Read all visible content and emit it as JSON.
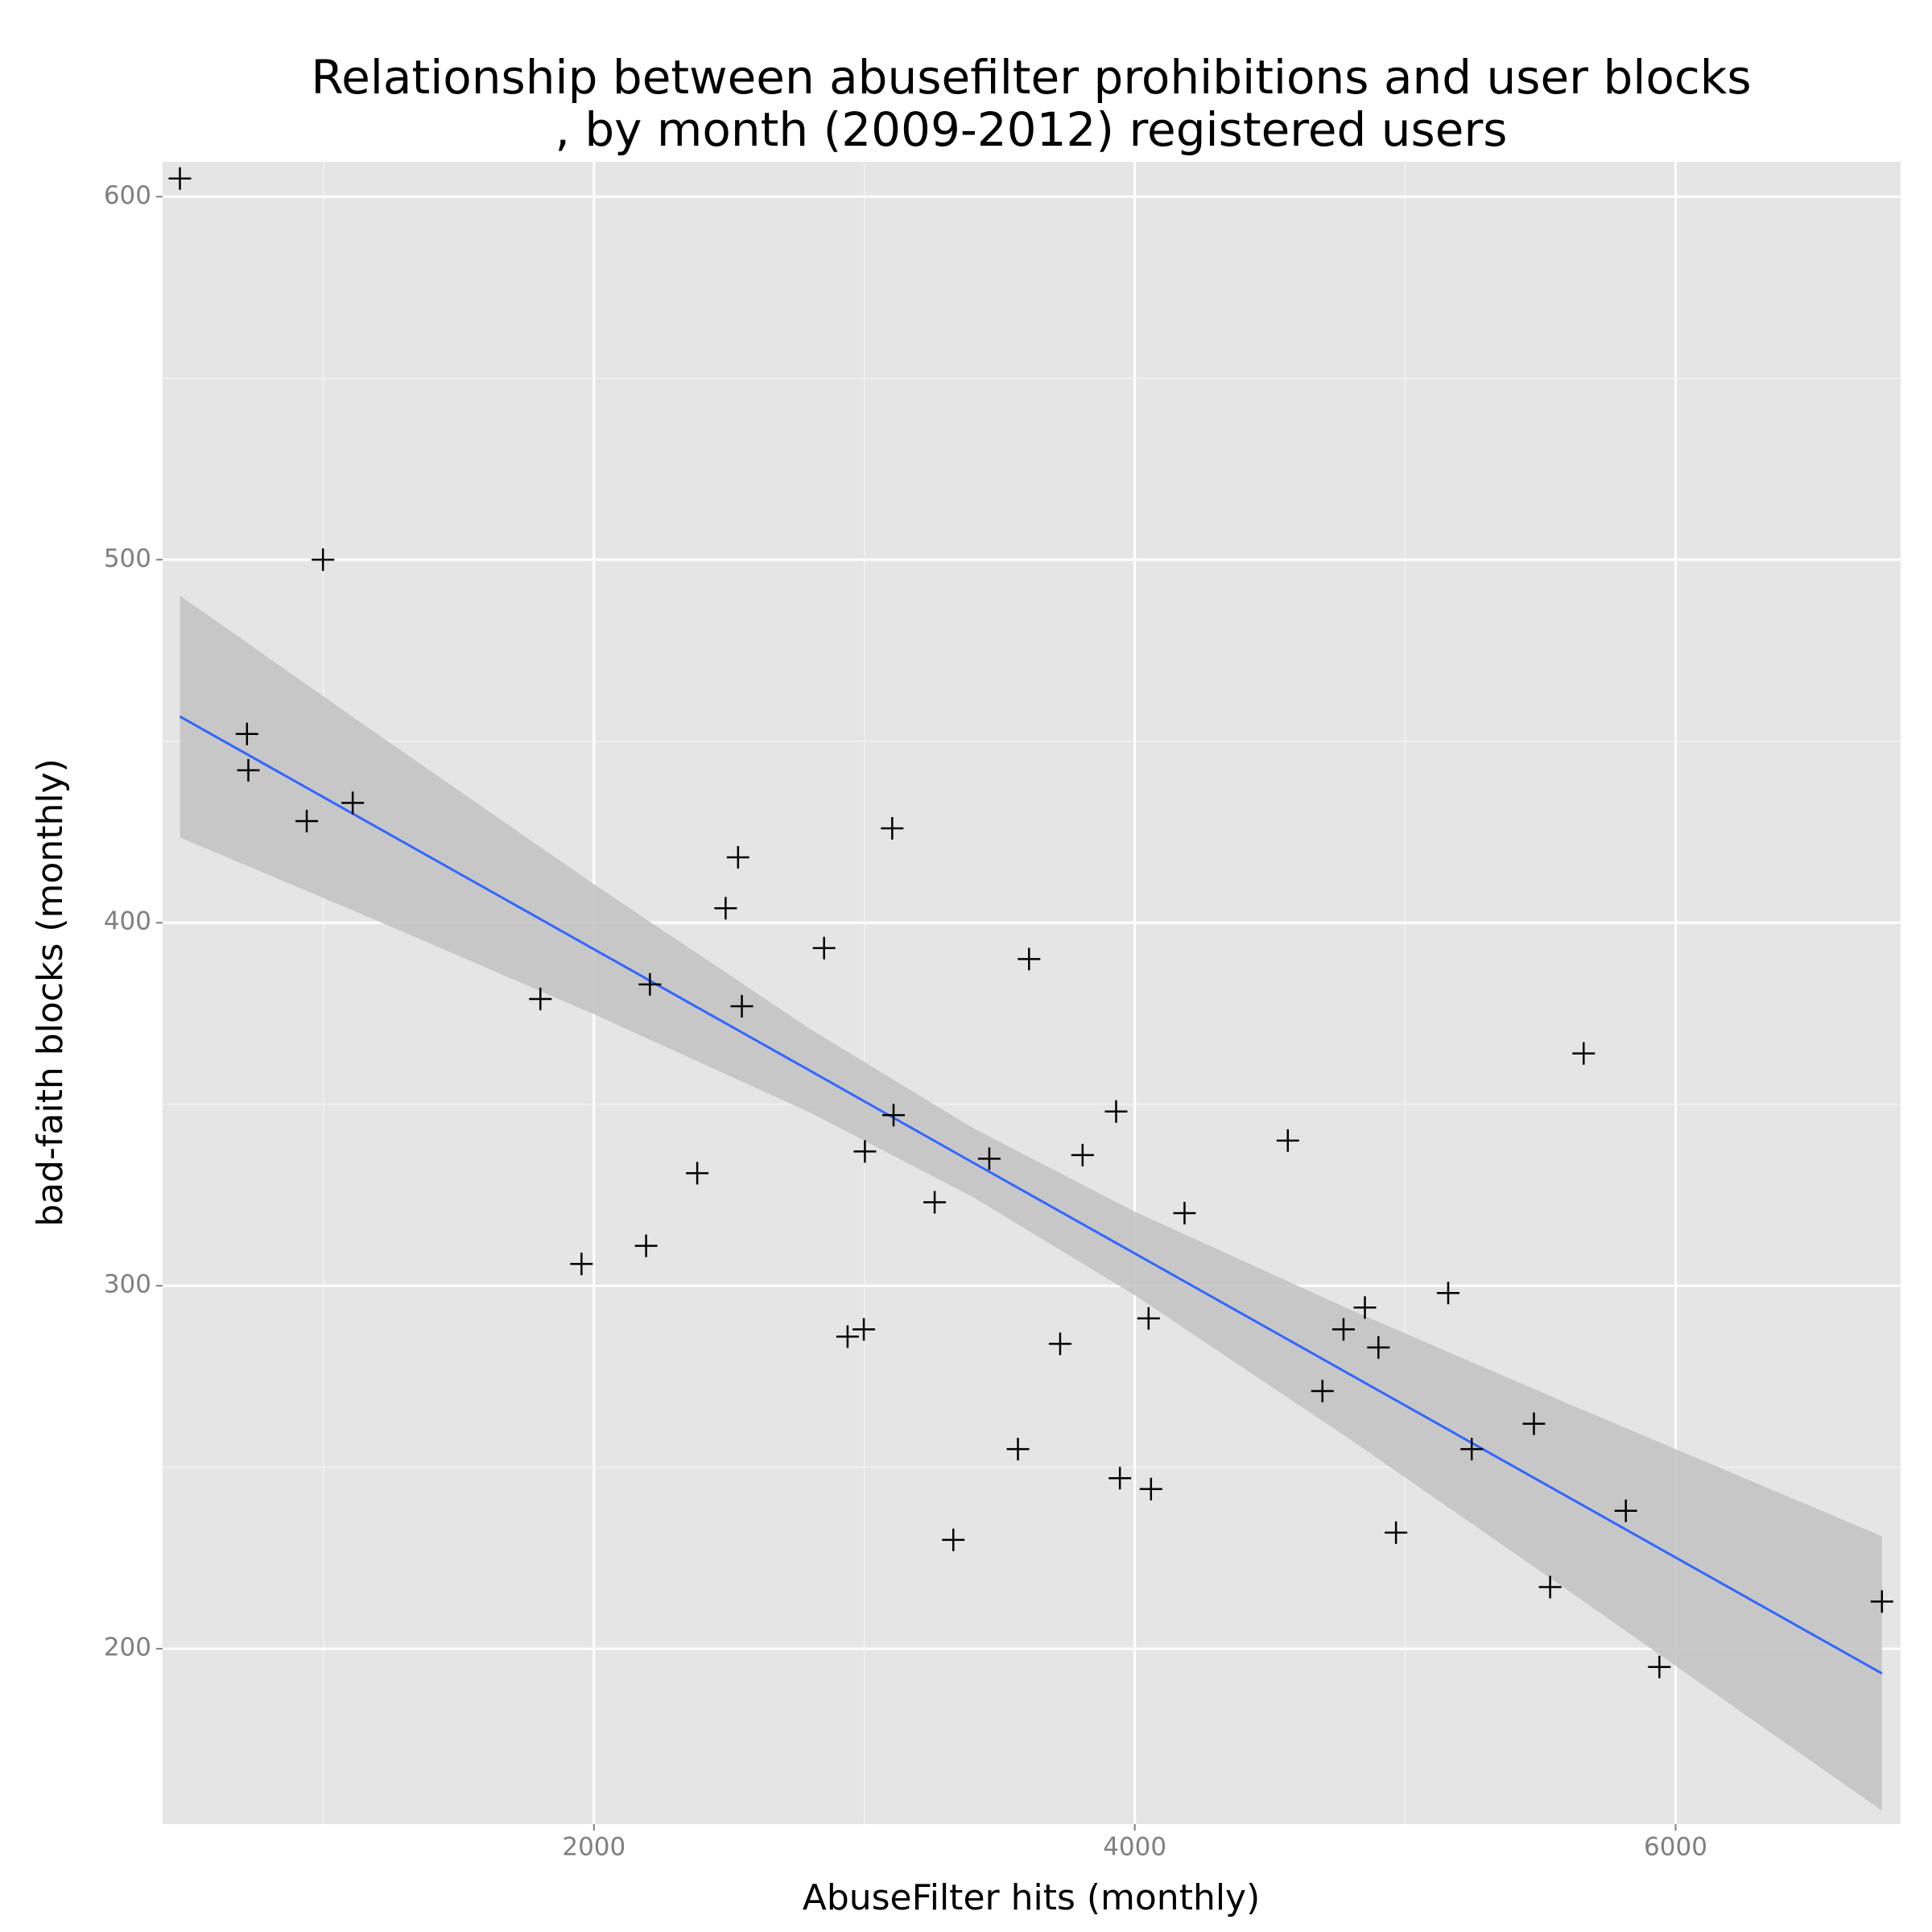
{
  "chart_data": {
    "type": "scatter",
    "title": [
      "Relationship between abusefilter prohibitions and user blocks",
      ", by month (2009-2012) registered users"
    ],
    "x_label": "AbuseFilter hits (monthly)",
    "y_label": "bad-faith blocks (monthly)",
    "xlim": [
      405,
      6832
    ],
    "ylim": [
      151.7,
      609.6
    ],
    "xticks": [
      2000,
      4000,
      6000
    ],
    "yticks": [
      200,
      300,
      400,
      500,
      600
    ],
    "x_minor_grid": [
      1000,
      3000,
      5000
    ],
    "y_minor_grid": [
      250,
      350,
      450,
      550
    ],
    "grid": true,
    "series": [
      {
        "color": "#000000",
        "x": [
          469,
          998,
          717,
          722,
          938,
          1108,
          1802,
          1954,
          2193,
          2207,
          2382,
          2487,
          2533,
          2547,
          2851,
          2938,
          2998,
          3002,
          3103,
          3108,
          3260,
          3329,
          3462,
          3568,
          3609,
          3724,
          3807,
          3931,
          3945,
          4051,
          4060,
          4184,
          4566,
          4694,
          4772,
          4851,
          4901,
          4966,
          5159,
          5246,
          5476,
          5536,
          5660,
          5816,
          5940,
          6763
        ],
        "values": [
          605,
          500,
          452,
          442,
          428,
          433,
          379,
          306,
          311,
          383,
          331,
          404,
          418,
          377,
          393,
          286,
          288,
          337,
          426,
          347,
          323,
          230,
          335,
          255,
          390,
          284,
          336,
          348,
          247,
          291,
          244,
          320,
          340,
          271,
          288,
          294,
          283,
          232,
          298,
          255,
          262,
          217,
          364,
          238,
          195,
          213
        ]
      }
    ],
    "smooth": {
      "line_color": "#3366ff",
      "band_color": "#c2c2c2",
      "x": [
        469,
        1200,
        2000,
        2800,
        3400,
        4000,
        4800,
        5600,
        6763
      ],
      "fit": [
        456.8,
        426.2,
        392.7,
        359.2,
        334.0,
        308.9,
        275.4,
        241.9,
        193.2
      ],
      "lower": [
        423.5,
        400.5,
        374.8,
        347.7,
        324.5,
        297.4,
        257.5,
        216.2,
        155.4
      ],
      "upper": [
        490.1,
        451.9,
        410.6,
        370.7,
        343.5,
        320.4,
        293.3,
        267.6,
        231.0
      ]
    }
  }
}
